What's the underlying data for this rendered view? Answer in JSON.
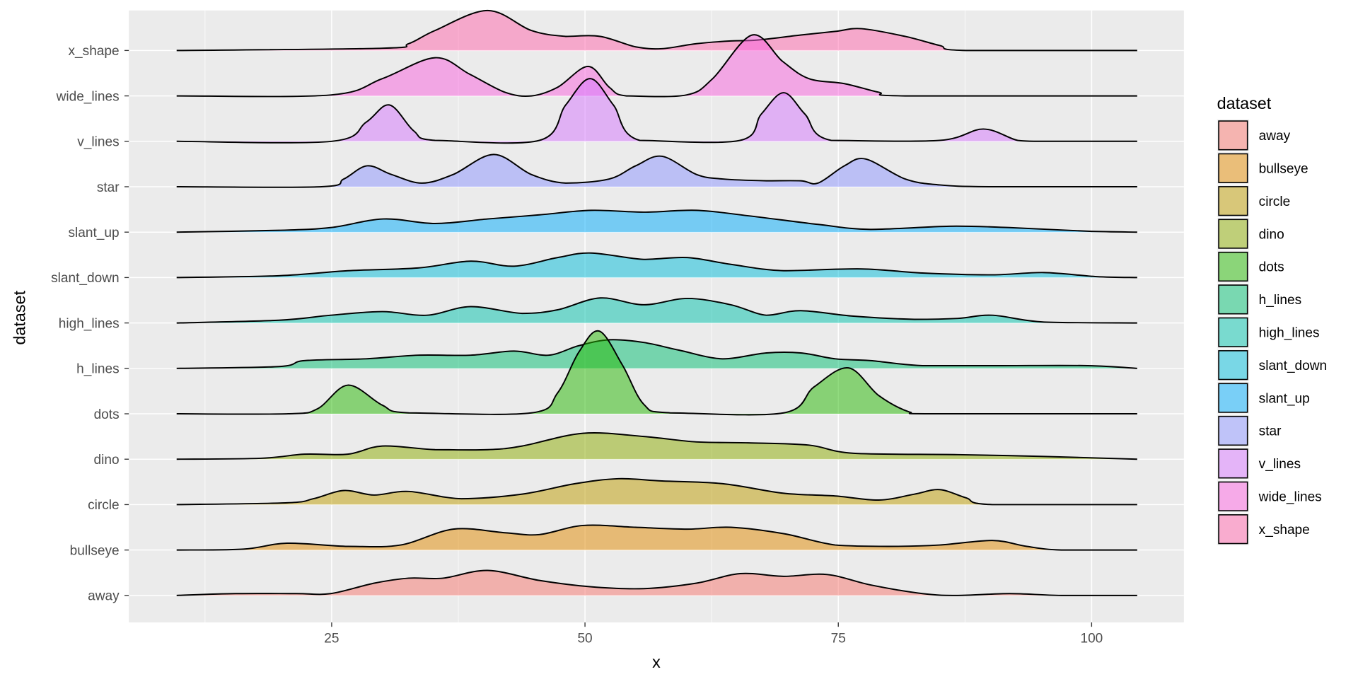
{
  "chart_data": {
    "type": "ridgeline",
    "xlabel": "x",
    "ylabel": "dataset",
    "xlim": [
      5,
      107
    ],
    "x_ticks": [
      25,
      50,
      75,
      100
    ],
    "x_tick_labels": [
      "25",
      "50",
      "75",
      "100"
    ],
    "grid": true,
    "legend": {
      "title": "dataset",
      "position": "right"
    },
    "alpha": 0.5,
    "series": [
      {
        "name": "x_shape",
        "color": "#FF65AC",
        "points": [
          [
            9.7,
            0
          ],
          [
            30,
            0.05
          ],
          [
            32.6,
            0.15
          ],
          [
            35.2,
            0.44
          ],
          [
            40.4,
            0.88
          ],
          [
            44.7,
            0.44
          ],
          [
            48.1,
            0.31
          ],
          [
            51.5,
            0.31
          ],
          [
            55,
            0.08
          ],
          [
            57.6,
            0.04
          ],
          [
            61,
            0.15
          ],
          [
            64.4,
            0.21
          ],
          [
            67,
            0.23
          ],
          [
            71.3,
            0.34
          ],
          [
            74.7,
            0.42
          ],
          [
            77.3,
            0.48
          ],
          [
            81.6,
            0.31
          ],
          [
            85,
            0.11
          ],
          [
            87.6,
            0
          ],
          [
            104.5,
            0
          ]
        ]
      },
      {
        "name": "wide_lines",
        "color": "#F962DD",
        "points": [
          [
            9.7,
            0
          ],
          [
            24.9,
            0.02
          ],
          [
            30,
            0.38
          ],
          [
            35.2,
            0.84
          ],
          [
            38.6,
            0.48
          ],
          [
            42.1,
            0.08
          ],
          [
            44.7,
            0.0
          ],
          [
            47.3,
            0.19
          ],
          [
            50.3,
            0.65
          ],
          [
            52.4,
            0.19
          ],
          [
            54.1,
            0
          ],
          [
            60,
            0.02
          ],
          [
            62.6,
            0.38
          ],
          [
            66.5,
            1.34
          ],
          [
            69.5,
            0.76
          ],
          [
            72.1,
            0.38
          ],
          [
            75.6,
            0.27
          ],
          [
            79,
            0.08
          ],
          [
            81.6,
            0
          ],
          [
            104.5,
            0
          ]
        ]
      },
      {
        "name": "v_lines",
        "color": "#D575FE",
        "points": [
          [
            9.7,
            0
          ],
          [
            25,
            0
          ],
          [
            28.4,
            0.42
          ],
          [
            30.7,
            0.8
          ],
          [
            33.1,
            0.23
          ],
          [
            35.2,
            0.02
          ],
          [
            45.5,
            0.02
          ],
          [
            48.1,
            0.8
          ],
          [
            50.5,
            1.38
          ],
          [
            52.8,
            0.8
          ],
          [
            55.4,
            0.02
          ],
          [
            65.3,
            0.02
          ],
          [
            67.4,
            0.6
          ],
          [
            69.6,
            1.07
          ],
          [
            71.7,
            0.6
          ],
          [
            74.3,
            0.02
          ],
          [
            85,
            0.02
          ],
          [
            89.3,
            0.27
          ],
          [
            92.7,
            0.02
          ],
          [
            95.2,
            0
          ],
          [
            104.5,
            0
          ]
        ]
      },
      {
        "name": "star",
        "color": "#8B93FF",
        "points": [
          [
            9.7,
            0
          ],
          [
            24,
            0
          ],
          [
            26.2,
            0.17
          ],
          [
            28.5,
            0.46
          ],
          [
            30.9,
            0.27
          ],
          [
            33.9,
            0.08
          ],
          [
            37,
            0.27
          ],
          [
            41,
            0.71
          ],
          [
            44.7,
            0.27
          ],
          [
            48.1,
            0.08
          ],
          [
            52.4,
            0.17
          ],
          [
            55,
            0.46
          ],
          [
            57.6,
            0.67
          ],
          [
            61,
            0.27
          ],
          [
            63.6,
            0.17
          ],
          [
            67.9,
            0.13
          ],
          [
            71.3,
            0.13
          ],
          [
            73,
            0.08
          ],
          [
            75.6,
            0.46
          ],
          [
            77.7,
            0.61
          ],
          [
            81.6,
            0.17
          ],
          [
            85,
            0.04
          ],
          [
            90,
            0
          ],
          [
            104.5,
            0
          ]
        ]
      },
      {
        "name": "slant_up",
        "color": "#00ACFC",
        "points": [
          [
            9.7,
            0
          ],
          [
            19.8,
            0.04
          ],
          [
            24.9,
            0.1
          ],
          [
            30.1,
            0.29
          ],
          [
            35.2,
            0.19
          ],
          [
            40.4,
            0.29
          ],
          [
            45.5,
            0.38
          ],
          [
            50.6,
            0.48
          ],
          [
            55.8,
            0.44
          ],
          [
            61,
            0.48
          ],
          [
            66.1,
            0.36
          ],
          [
            73,
            0.17
          ],
          [
            78.2,
            0.06
          ],
          [
            86,
            0.13
          ],
          [
            91.9,
            0.1
          ],
          [
            99.6,
            0.02
          ],
          [
            104.5,
            0
          ]
        ]
      },
      {
        "name": "slant_down",
        "color": "#00BBDA",
        "points": [
          [
            9.7,
            0
          ],
          [
            19.8,
            0.04
          ],
          [
            26.6,
            0.15
          ],
          [
            33.5,
            0.21
          ],
          [
            38.7,
            0.36
          ],
          [
            43,
            0.25
          ],
          [
            47.3,
            0.44
          ],
          [
            50.6,
            0.54
          ],
          [
            55.8,
            0.4
          ],
          [
            60.1,
            0.44
          ],
          [
            64.4,
            0.29
          ],
          [
            69.6,
            0.15
          ],
          [
            77.3,
            0.19
          ],
          [
            83.3,
            0.1
          ],
          [
            90.2,
            0.06
          ],
          [
            95.3,
            0.11
          ],
          [
            100.5,
            0.02
          ],
          [
            104.5,
            0
          ]
        ]
      },
      {
        "name": "high_lines",
        "color": "#00C1AB",
        "points": [
          [
            9.7,
            0
          ],
          [
            19.8,
            0.06
          ],
          [
            24.9,
            0.17
          ],
          [
            30,
            0.25
          ],
          [
            34.4,
            0.17
          ],
          [
            38.7,
            0.36
          ],
          [
            43.8,
            0.21
          ],
          [
            47.3,
            0.29
          ],
          [
            51.5,
            0.55
          ],
          [
            55.8,
            0.4
          ],
          [
            60.1,
            0.54
          ],
          [
            64.4,
            0.4
          ],
          [
            67.9,
            0.17
          ],
          [
            71.3,
            0.27
          ],
          [
            76.5,
            0.15
          ],
          [
            82.5,
            0.08
          ],
          [
            86.8,
            0.1
          ],
          [
            90.2,
            0.17
          ],
          [
            95.3,
            0.02
          ],
          [
            104.5,
            0
          ]
        ]
      },
      {
        "name": "h_lines",
        "color": "#00BE70",
        "points": [
          [
            9.7,
            0
          ],
          [
            19.8,
            0.04
          ],
          [
            22.3,
            0.17
          ],
          [
            28.4,
            0.21
          ],
          [
            33.5,
            0.29
          ],
          [
            38.7,
            0.29
          ],
          [
            43,
            0.38
          ],
          [
            46.4,
            0.29
          ],
          [
            49.4,
            0.5
          ],
          [
            52.4,
            0.63
          ],
          [
            55.8,
            0.57
          ],
          [
            59.3,
            0.4
          ],
          [
            63.6,
            0.21
          ],
          [
            67.9,
            0.34
          ],
          [
            71.3,
            0.34
          ],
          [
            74.7,
            0.21
          ],
          [
            78.2,
            0.17
          ],
          [
            83.3,
            0.06
          ],
          [
            91,
            0.06
          ],
          [
            99.6,
            0.06
          ],
          [
            104.5,
            0
          ]
        ]
      },
      {
        "name": "dots",
        "color": "#24B700",
        "points": [
          [
            9.7,
            0
          ],
          [
            20.7,
            0
          ],
          [
            23.6,
            0.11
          ],
          [
            26.6,
            0.63
          ],
          [
            30,
            0.19
          ],
          [
            32.6,
            0.02
          ],
          [
            44.7,
            0.02
          ],
          [
            47.3,
            0.46
          ],
          [
            49.4,
            1.36
          ],
          [
            51.4,
            1.82
          ],
          [
            53.7,
            1.07
          ],
          [
            55.8,
            0.21
          ],
          [
            58.4,
            0.02
          ],
          [
            69.6,
            0.02
          ],
          [
            72.6,
            0.59
          ],
          [
            76,
            1.01
          ],
          [
            79,
            0.4
          ],
          [
            82,
            0.04
          ],
          [
            84.2,
            0
          ],
          [
            104.5,
            0
          ]
        ]
      },
      {
        "name": "dino",
        "color": "#8CAB00",
        "points": [
          [
            9.7,
            0
          ],
          [
            18,
            0.02
          ],
          [
            22.3,
            0.11
          ],
          [
            26.6,
            0.11
          ],
          [
            30,
            0.29
          ],
          [
            35.2,
            0.21
          ],
          [
            40.4,
            0.21
          ],
          [
            43.8,
            0.29
          ],
          [
            49.8,
            0.57
          ],
          [
            55.8,
            0.5
          ],
          [
            61,
            0.38
          ],
          [
            66.1,
            0.36
          ],
          [
            72.1,
            0.31
          ],
          [
            76.5,
            0.13
          ],
          [
            86.8,
            0.1
          ],
          [
            95.3,
            0.06
          ],
          [
            104.5,
            0
          ]
        ]
      },
      {
        "name": "circle",
        "color": "#BE9C00",
        "points": [
          [
            9.7,
            0
          ],
          [
            20.6,
            0.04
          ],
          [
            23.2,
            0.13
          ],
          [
            26.2,
            0.31
          ],
          [
            29.2,
            0.21
          ],
          [
            32.6,
            0.29
          ],
          [
            37.8,
            0.13
          ],
          [
            43.8,
            0.23
          ],
          [
            49,
            0.46
          ],
          [
            53.3,
            0.57
          ],
          [
            57.6,
            0.52
          ],
          [
            63.6,
            0.46
          ],
          [
            69.6,
            0.25
          ],
          [
            74.7,
            0.19
          ],
          [
            79,
            0.1
          ],
          [
            82.5,
            0.23
          ],
          [
            85,
            0.33
          ],
          [
            87.6,
            0.15
          ],
          [
            90.2,
            0
          ],
          [
            104.5,
            0
          ]
        ]
      },
      {
        "name": "bullseye",
        "color": "#E18A00",
        "points": [
          [
            9.7,
            0
          ],
          [
            16.3,
            0.02
          ],
          [
            20.6,
            0.15
          ],
          [
            26.6,
            0.08
          ],
          [
            31.8,
            0.11
          ],
          [
            37,
            0.46
          ],
          [
            42.1,
            0.38
          ],
          [
            45.5,
            0.34
          ],
          [
            49.8,
            0.54
          ],
          [
            55,
            0.5
          ],
          [
            60.1,
            0.46
          ],
          [
            64.4,
            0.5
          ],
          [
            69.6,
            0.36
          ],
          [
            74.7,
            0.11
          ],
          [
            79.9,
            0.08
          ],
          [
            85,
            0.11
          ],
          [
            90.2,
            0.21
          ],
          [
            93.6,
            0.08
          ],
          [
            97,
            0
          ],
          [
            104.5,
            0
          ]
        ]
      },
      {
        "name": "away",
        "color": "#F8766D",
        "points": [
          [
            9.7,
            0
          ],
          [
            15.5,
            0.04
          ],
          [
            21.5,
            0.04
          ],
          [
            24.9,
            0.04
          ],
          [
            29.2,
            0.27
          ],
          [
            32.6,
            0.38
          ],
          [
            36,
            0.38
          ],
          [
            40.4,
            0.55
          ],
          [
            45.5,
            0.33
          ],
          [
            50.6,
            0.19
          ],
          [
            55.8,
            0.15
          ],
          [
            61,
            0.27
          ],
          [
            65.3,
            0.48
          ],
          [
            69.6,
            0.42
          ],
          [
            73.9,
            0.46
          ],
          [
            78.2,
            0.23
          ],
          [
            83.3,
            0.04
          ],
          [
            86.8,
            0
          ],
          [
            91.9,
            0.04
          ],
          [
            97,
            0
          ],
          [
            104.5,
            0
          ]
        ]
      }
    ]
  }
}
